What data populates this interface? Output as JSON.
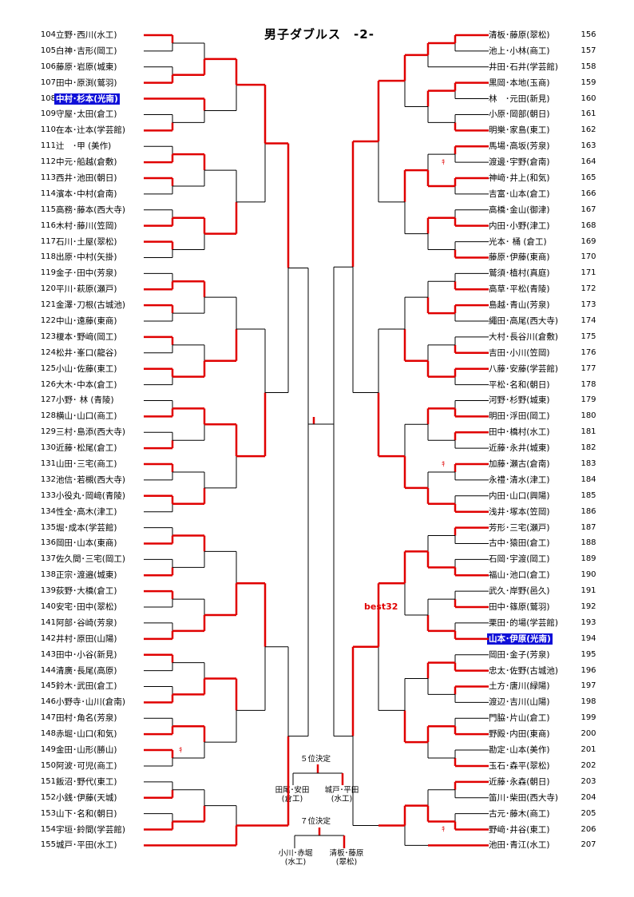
{
  "title": "男子ダブルス　-2-",
  "best32": "best32",
  "left": [
    {
      "no": "104",
      "name": "立野･西川(水工)"
    },
    {
      "no": "105",
      "name": "白神･吉形(岡工)"
    },
    {
      "no": "106",
      "name": "藤原･岩原(城東)"
    },
    {
      "no": "107",
      "name": "田中･原渕(鷲羽)"
    },
    {
      "no": "108",
      "name": "中村･杉本(光南)",
      "hl": true
    },
    {
      "no": "109",
      "name": "守屋･太田(倉工)"
    },
    {
      "no": "110",
      "name": "在本･辻本(学芸館)"
    },
    {
      "no": "111",
      "name": "辻　･甲 (美作)"
    },
    {
      "no": "112",
      "name": "中元･船越(倉敷)"
    },
    {
      "no": "113",
      "name": "西井･池田(朝日)"
    },
    {
      "no": "114",
      "name": "濱本･中村(倉南)"
    },
    {
      "no": "115",
      "name": "高務･藤本(西大寺)"
    },
    {
      "no": "116",
      "name": "木村･藤川(笠岡)"
    },
    {
      "no": "117",
      "name": "石川･土屋(翠松)"
    },
    {
      "no": "118",
      "name": "出原･中村(矢掛)"
    },
    {
      "no": "119",
      "name": "金子･田中(芳泉)"
    },
    {
      "no": "120",
      "name": "平川･萩原(瀬戸)"
    },
    {
      "no": "121",
      "name": "金澤･刀根(古城池)"
    },
    {
      "no": "122",
      "name": "中山･遠藤(東商)"
    },
    {
      "no": "123",
      "name": "榎本･野﨑(岡工)"
    },
    {
      "no": "124",
      "name": "松井･峯口(龍谷)"
    },
    {
      "no": "125",
      "name": "小山･佐藤(東工)"
    },
    {
      "no": "126",
      "name": "大木･中本(倉工)"
    },
    {
      "no": "127",
      "name": "小野･ 林 (青陵)"
    },
    {
      "no": "128",
      "name": "横山･山口(商工)"
    },
    {
      "no": "129",
      "name": "三村･島添(西大寺)"
    },
    {
      "no": "130",
      "name": "近藤･松尾(倉工)"
    },
    {
      "no": "131",
      "name": "山田･三宅(商工)"
    },
    {
      "no": "132",
      "name": "池信･若槻(西大寺)"
    },
    {
      "no": "133",
      "name": "小役丸･岡﨑(青陵)"
    },
    {
      "no": "134",
      "name": "性全･高木(津工)"
    },
    {
      "no": "135",
      "name": "堀･成本(学芸館)"
    },
    {
      "no": "136",
      "name": "岡田･山本(東商)"
    },
    {
      "no": "137",
      "name": "佐久間･三宅(岡工)"
    },
    {
      "no": "138",
      "name": "正宗･渡邉(城東)"
    },
    {
      "no": "139",
      "name": "荻野･大橋(倉工)"
    },
    {
      "no": "140",
      "name": "安宅･田中(翠松)"
    },
    {
      "no": "141",
      "name": "阿部･谷崎(芳泉)"
    },
    {
      "no": "142",
      "name": "井村･原田(山陽)"
    },
    {
      "no": "143",
      "name": "田中･小谷(新見)"
    },
    {
      "no": "144",
      "name": "清廣･長尾(高原)"
    },
    {
      "no": "145",
      "name": "鈴木･武田(倉工)"
    },
    {
      "no": "146",
      "name": "小野寺･山川(倉南)"
    },
    {
      "no": "147",
      "name": "田村･角名(芳泉)"
    },
    {
      "no": "148",
      "name": "赤堀･山口(和気)"
    },
    {
      "no": "149",
      "name": "金田･山形(勝山)"
    },
    {
      "no": "150",
      "name": "阿波･可児(商工)"
    },
    {
      "no": "151",
      "name": "飯沼･野代(東工)"
    },
    {
      "no": "152",
      "name": "小銭･伊藤(天城)"
    },
    {
      "no": "153",
      "name": "山下･名和(朝日)"
    },
    {
      "no": "154",
      "name": "宇垣･鈴間(学芸館)"
    },
    {
      "no": "155",
      "name": "城戸･平田(水工)"
    }
  ],
  "right": [
    {
      "no": "156",
      "name": "清板･藤原(翠松)"
    },
    {
      "no": "157",
      "name": "池上･小林(商工)"
    },
    {
      "no": "158",
      "name": "井田･石井(学芸館)"
    },
    {
      "no": "159",
      "name": "黒岡･本地(玉商)"
    },
    {
      "no": "160",
      "name": "林　･元田(新見)"
    },
    {
      "no": "161",
      "name": "小原･岡部(朝日)"
    },
    {
      "no": "162",
      "name": "明樂･家島(東工)"
    },
    {
      "no": "163",
      "name": "馬場･高坂(芳泉)"
    },
    {
      "no": "164",
      "name": "渡邊･宇野(倉南)"
    },
    {
      "no": "165",
      "name": "神﨑･井上(和気)"
    },
    {
      "no": "166",
      "name": "吉富･山本(倉工)"
    },
    {
      "no": "167",
      "name": "高橋･金山(御津)"
    },
    {
      "no": "168",
      "name": "内田･小野(津工)"
    },
    {
      "no": "169",
      "name": "光本･ 桶 (倉工)"
    },
    {
      "no": "170",
      "name": "藤原･伊藤(東商)"
    },
    {
      "no": "171",
      "name": "鷲須･植村(真庭)"
    },
    {
      "no": "172",
      "name": "高草･平松(青陵)"
    },
    {
      "no": "173",
      "name": "島越･青山(芳泉)"
    },
    {
      "no": "174",
      "name": "繩田･高尾(西大寺)"
    },
    {
      "no": "175",
      "name": "大村･長谷川(倉敷)"
    },
    {
      "no": "176",
      "name": "吉田･小川(笠岡)"
    },
    {
      "no": "177",
      "name": "八藤･安藤(学芸館)"
    },
    {
      "no": "178",
      "name": "平松･名和(朝日)"
    },
    {
      "no": "179",
      "name": "河野･杉野(城東)"
    },
    {
      "no": "180",
      "name": "明田･浮田(岡工)"
    },
    {
      "no": "181",
      "name": "田中･橋村(水工)"
    },
    {
      "no": "182",
      "name": "近藤･永井(城東)"
    },
    {
      "no": "183",
      "name": "加藤･瀬古(倉南)"
    },
    {
      "no": "184",
      "name": "永禮･清水(津工)"
    },
    {
      "no": "185",
      "name": "内田･山口(興陽)"
    },
    {
      "no": "186",
      "name": "浅井･塚本(笠岡)"
    },
    {
      "no": "187",
      "name": "芳形･三宅(瀬戸)"
    },
    {
      "no": "188",
      "name": "古中･猿田(倉工)"
    },
    {
      "no": "189",
      "name": "石岡･宇渡(岡工)"
    },
    {
      "no": "190",
      "name": "福山･池口(倉工)"
    },
    {
      "no": "191",
      "name": "武久･岸野(邑久)"
    },
    {
      "no": "192",
      "name": "田中･篠原(鷲羽)"
    },
    {
      "no": "193",
      "name": "栗田･的場(学芸館)"
    },
    {
      "no": "194",
      "name": "山本･伊原(光南)",
      "hl": true
    },
    {
      "no": "195",
      "name": "岡田･金子(芳泉)"
    },
    {
      "no": "196",
      "name": "忠太･佐野(古城池)"
    },
    {
      "no": "197",
      "name": "土方･唐川(緑陽)"
    },
    {
      "no": "198",
      "name": "渡辺･吉川(山陽)"
    },
    {
      "no": "199",
      "name": "門脇･片山(倉工)"
    },
    {
      "no": "200",
      "name": "野殿･内田(東商)"
    },
    {
      "no": "201",
      "name": "勘定･山本(美作)"
    },
    {
      "no": "202",
      "name": "玉石･森平(翠松)"
    },
    {
      "no": "203",
      "name": "近藤･永森(朝日)"
    },
    {
      "no": "204",
      "name": "笛川･柴田(西大寺)"
    },
    {
      "no": "205",
      "name": "古元･藤木(商工)"
    },
    {
      "no": "206",
      "name": "野﨑･井谷(東工)"
    },
    {
      "no": "207",
      "name": "池田･青江(水工)"
    }
  ],
  "place5": {
    "label": "５位決定",
    "a1": "田尾･安田",
    "a2": "(倉工)",
    "b1": "城戸･平田",
    "b2": "(水工)"
  },
  "place7": {
    "label": "７位決定",
    "a1": "小川･赤堀",
    "a2": "(水工)",
    "b1": "清板･藤原",
    "b2": "(翠松)"
  }
}
